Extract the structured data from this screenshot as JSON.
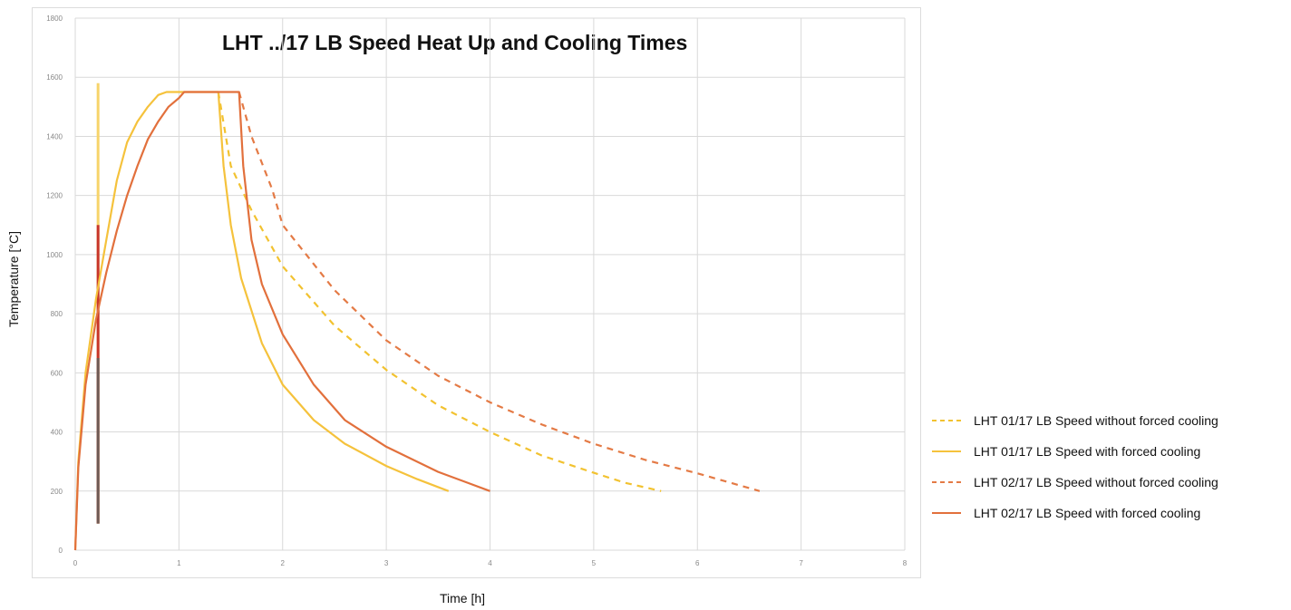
{
  "chart_data": {
    "type": "line",
    "title": "LHT ../17 LB Speed Heat Up and Cooling Times",
    "xlabel": "Time [h]",
    "ylabel": "Temperature [°C]",
    "xlim": [
      0,
      8
    ],
    "ylim": [
      0,
      1800
    ],
    "x_ticks": [
      "0",
      "1",
      "2",
      "3",
      "4",
      "5",
      "6",
      "7",
      "8"
    ],
    "y_ticks": [
      "0",
      "200",
      "400",
      "600",
      "800",
      "1000",
      "1200",
      "1400",
      "1600",
      "1800"
    ],
    "grid": true,
    "legend_position": "right",
    "series": [
      {
        "name": "LHT 01/17 LB Speed without forced cooling",
        "color": "#f2c230",
        "dash": true,
        "points": [
          [
            1.38,
            1550
          ],
          [
            1.5,
            1300
          ],
          [
            1.7,
            1150
          ],
          [
            2.0,
            960
          ],
          [
            2.5,
            760
          ],
          [
            3.0,
            610
          ],
          [
            3.5,
            490
          ],
          [
            4.0,
            400
          ],
          [
            4.5,
            320
          ],
          [
            5.0,
            262
          ],
          [
            5.3,
            228
          ],
          [
            5.65,
            200
          ]
        ]
      },
      {
        "name": "LHT 01/17 LB Speed with forced cooling",
        "color": "#f5c23c",
        "dash": false,
        "points": [
          [
            0,
            0
          ],
          [
            0.03,
            300
          ],
          [
            0.1,
            600
          ],
          [
            0.2,
            850
          ],
          [
            0.3,
            1050
          ],
          [
            0.4,
            1250
          ],
          [
            0.5,
            1380
          ],
          [
            0.6,
            1450
          ],
          [
            0.7,
            1500
          ],
          [
            0.8,
            1540
          ],
          [
            0.88,
            1550
          ],
          [
            1.38,
            1550
          ],
          [
            1.43,
            1300
          ],
          [
            1.5,
            1100
          ],
          [
            1.6,
            920
          ],
          [
            1.8,
            700
          ],
          [
            2.0,
            560
          ],
          [
            2.3,
            440
          ],
          [
            2.6,
            360
          ],
          [
            3.0,
            285
          ],
          [
            3.3,
            240
          ],
          [
            3.6,
            200
          ]
        ]
      },
      {
        "name": "LHT 02/17 LB Speed without forced cooling",
        "color": "#e47a45",
        "dash": true,
        "points": [
          [
            1.58,
            1550
          ],
          [
            1.7,
            1400
          ],
          [
            1.9,
            1220
          ],
          [
            2.0,
            1100
          ],
          [
            2.5,
            880
          ],
          [
            3.0,
            710
          ],
          [
            3.5,
            590
          ],
          [
            4.0,
            500
          ],
          [
            4.5,
            425
          ],
          [
            5.0,
            360
          ],
          [
            5.5,
            305
          ],
          [
            6.0,
            260
          ],
          [
            6.6,
            200
          ]
        ]
      },
      {
        "name": "LHT 02/17 LB Speed with forced cooling",
        "color": "#e2703c",
        "dash": false,
        "points": [
          [
            0,
            0
          ],
          [
            0.03,
            280
          ],
          [
            0.1,
            560
          ],
          [
            0.2,
            780
          ],
          [
            0.3,
            940
          ],
          [
            0.4,
            1080
          ],
          [
            0.5,
            1200
          ],
          [
            0.6,
            1300
          ],
          [
            0.7,
            1390
          ],
          [
            0.8,
            1450
          ],
          [
            0.9,
            1500
          ],
          [
            1.0,
            1530
          ],
          [
            1.05,
            1550
          ],
          [
            1.58,
            1550
          ],
          [
            1.62,
            1300
          ],
          [
            1.7,
            1050
          ],
          [
            1.8,
            900
          ],
          [
            2.0,
            730
          ],
          [
            2.3,
            560
          ],
          [
            2.6,
            440
          ],
          [
            3.0,
            350
          ],
          [
            3.5,
            265
          ],
          [
            4.0,
            200
          ]
        ]
      }
    ]
  }
}
